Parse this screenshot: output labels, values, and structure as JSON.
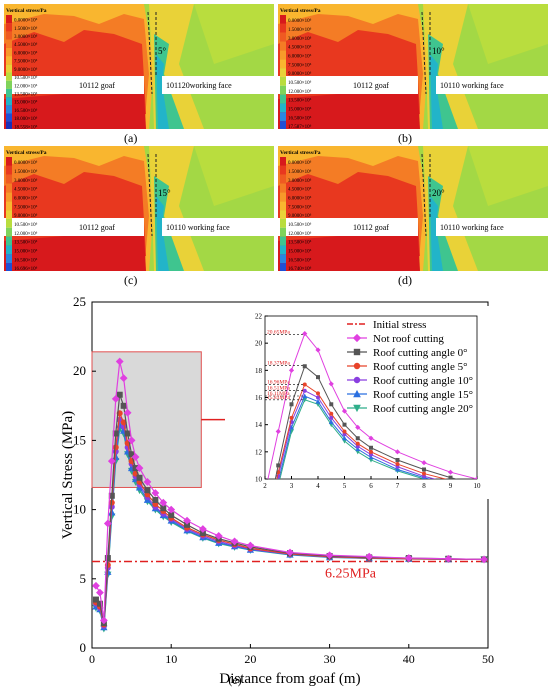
{
  "panels": [
    {
      "id": "a",
      "label": "(a)",
      "angle": "5°",
      "goaf": "10112 goaf",
      "face": "101120working face",
      "legend_title": "Vertical stress/Pa",
      "legend": [
        "0.0000×10⁶",
        "1.5000×10⁶",
        "3.0000×10⁶",
        "4.5000×10⁶",
        "6.0000×10⁶",
        "7.5000×10⁶",
        "9.0000×10⁶",
        "10.500×10⁶",
        "12.000×10⁶",
        "13.500×10⁶",
        "15.000×10⁶",
        "16.500×10⁶",
        "18.000×10⁶",
        "18.558×10⁶"
      ]
    },
    {
      "id": "b",
      "label": "(b)",
      "angle": "10°",
      "goaf": "10112 goaf",
      "face": "10110 working face",
      "legend_title": "Vertical stress/Pa",
      "legend": [
        "0.0000×10⁶",
        "1.5000×10⁶",
        "3.0000×10⁶",
        "4.5000×10⁶",
        "6.0000×10⁶",
        "7.5000×10⁶",
        "9.0000×10⁶",
        "10.500×10⁶",
        "12.000×10⁶",
        "13.500×10⁶",
        "15.000×10⁶",
        "16.500×10⁶",
        "17.587×10⁶"
      ]
    },
    {
      "id": "c",
      "label": "(c)",
      "angle": "15°",
      "goaf": "10112 goaf",
      "face": "10110 working face",
      "legend_title": "Vertical stress/Pa",
      "legend": [
        "0.0000×10⁶",
        "1.5000×10⁶",
        "3.0000×10⁶",
        "4.5000×10⁶",
        "6.0000×10⁶",
        "7.5000×10⁶",
        "9.0000×10⁶",
        "10.500×10⁶",
        "12.000×10⁶",
        "13.500×10⁶",
        "15.000×10⁶",
        "16.500×10⁶",
        "16.696×10⁶"
      ]
    },
    {
      "id": "d",
      "label": "(d)",
      "angle": "20°",
      "goaf": "10112 goaf",
      "face": "10110 working face",
      "legend_title": "Vertical stress/Pa",
      "legend": [
        "0.0000×10⁶",
        "1.5000×10⁶",
        "3.0000×10⁶",
        "4.5000×10⁶",
        "6.0000×10⁶",
        "7.5000×10⁶",
        "9.0000×10⁶",
        "10.500×10⁶",
        "12.000×10⁶",
        "13.500×10⁶",
        "15.000×10⁶",
        "16.500×10⁶",
        "16.740×10⁶"
      ]
    }
  ],
  "legend_colors": [
    "#d7191c",
    "#e8381f",
    "#ef5a22",
    "#f47c25",
    "#f79a2a",
    "#f9b62f",
    "#e9d238",
    "#b9dd3e",
    "#7fd35a",
    "#3fc58f",
    "#22b4c9",
    "#2a86e0",
    "#1f4fd6",
    "#1a2fb8"
  ],
  "main_label": "(e)",
  "chart_data": {
    "type": "line",
    "xlabel": "Distance from goaf (m)",
    "ylabel": "Vertical Stress (MPa)",
    "xlim": [
      0,
      50
    ],
    "ylim": [
      0,
      25
    ],
    "xticks": [
      0,
      10,
      20,
      30,
      40,
      50
    ],
    "yticks": [
      0,
      5,
      10,
      15,
      20,
      25
    ],
    "x": [
      0.5,
      1,
      1.5,
      2,
      2.5,
      3,
      3.5,
      4,
      4.5,
      5,
      5.5,
      6,
      7,
      8,
      9,
      10,
      12,
      14,
      16,
      18,
      20,
      25,
      30,
      35,
      40,
      45,
      49.5
    ],
    "series": [
      {
        "name": "Not roof cutting",
        "color": "#e040e0",
        "marker": "diamond",
        "values": [
          4.5,
          4.0,
          2.0,
          9.0,
          13.5,
          18.0,
          20.7,
          19.5,
          17.0,
          15.0,
          13.8,
          13.0,
          12.0,
          11.2,
          10.5,
          10.0,
          9.2,
          8.6,
          8.1,
          7.7,
          7.4,
          6.9,
          6.7,
          6.6,
          6.5,
          6.45,
          6.4
        ]
      },
      {
        "name": "Roof cutting angle 0°",
        "color": "#555555",
        "marker": "square",
        "values": [
          3.5,
          3.2,
          1.8,
          6.5,
          11.0,
          15.5,
          18.3,
          17.5,
          15.5,
          14.0,
          13.0,
          12.3,
          11.4,
          10.7,
          10.1,
          9.6,
          8.9,
          8.3,
          7.9,
          7.6,
          7.3,
          6.85,
          6.65,
          6.55,
          6.5,
          6.45,
          6.4
        ]
      },
      {
        "name": "Roof cutting angle 5°",
        "color": "#e8432a",
        "marker": "circle",
        "values": [
          3.3,
          3.0,
          1.7,
          6.0,
          10.5,
          14.5,
          16.96,
          16.3,
          14.8,
          13.5,
          12.6,
          12.0,
          11.1,
          10.4,
          9.9,
          9.4,
          8.7,
          8.2,
          7.8,
          7.5,
          7.2,
          6.8,
          6.6,
          6.5,
          6.45,
          6.42,
          6.4
        ]
      },
      {
        "name": "Roof cutting angle 10°",
        "color": "#8a3fe0",
        "marker": "circle",
        "values": [
          3.2,
          2.9,
          1.6,
          5.8,
          10.2,
          14.2,
          16.5,
          16.0,
          14.5,
          13.3,
          12.4,
          11.8,
          10.9,
          10.2,
          9.7,
          9.3,
          8.6,
          8.1,
          7.7,
          7.4,
          7.15,
          6.78,
          6.58,
          6.5,
          6.45,
          6.42,
          6.4
        ]
      },
      {
        "name": "Roof cutting angle 15°",
        "color": "#2a6fe0",
        "marker": "triangle-up",
        "values": [
          3.0,
          2.8,
          1.5,
          5.5,
          9.8,
          13.8,
          16.1,
          15.7,
          14.2,
          13.0,
          12.2,
          11.6,
          10.7,
          10.1,
          9.6,
          9.2,
          8.5,
          8.0,
          7.6,
          7.35,
          7.1,
          6.75,
          6.56,
          6.48,
          6.44,
          6.41,
          6.4
        ]
      },
      {
        "name": "Roof cutting angle 20°",
        "color": "#2fae8a",
        "marker": "triangle-down",
        "values": [
          2.9,
          2.7,
          1.4,
          5.3,
          9.5,
          13.5,
          15.83,
          15.5,
          14.0,
          12.8,
          12.0,
          11.4,
          10.6,
          10.0,
          9.5,
          9.1,
          8.45,
          7.95,
          7.55,
          7.3,
          7.08,
          6.73,
          6.55,
          6.47,
          6.43,
          6.41,
          6.4
        ]
      }
    ],
    "initial_stress": {
      "name": "Initial stress",
      "value": 6.25,
      "label": "6.25MPa",
      "color": "#e02020"
    },
    "inset": {
      "xlim": [
        2,
        10
      ],
      "ylim": [
        10,
        22
      ],
      "xticks": [
        2,
        3,
        4,
        5,
        6,
        7,
        8,
        9,
        10
      ],
      "yticks": [
        10,
        12,
        14,
        16,
        18,
        20,
        22
      ],
      "peak_labels": [
        "20.65MPa",
        "18.37MPa",
        "16.96MPa",
        "16.51MPa",
        "16.11MPa",
        "15.83MPa"
      ],
      "peak_values": [
        20.65,
        18.37,
        16.96,
        16.51,
        16.11,
        15.83
      ]
    },
    "legend_position": "inset-right"
  }
}
